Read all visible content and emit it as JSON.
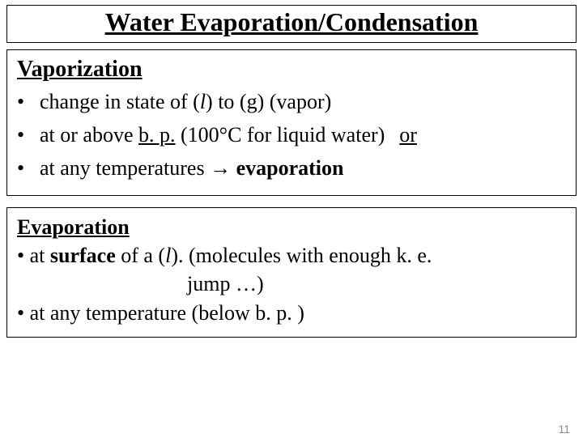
{
  "title": "Water Evaporation/Condensation",
  "colors": {
    "background": "#ffffff",
    "text": "#000000",
    "border": "#000000",
    "pagenum": "#8a8a8a"
  },
  "typography": {
    "title_fontsize": 32,
    "subhead_fontsize": 28,
    "body_fontsize": 26,
    "pagenum_fontsize": 14,
    "family": "Times New Roman"
  },
  "vaporization": {
    "heading": "Vaporization",
    "bullets": [
      {
        "lead": "change in state of (",
        "italic": "l",
        "tail": ") to (g) (vapor)"
      },
      {
        "pre": "at or above ",
        "bp": "b. p.",
        "post": " (100°C for liquid water)",
        "or": "or"
      },
      {
        "pre": "at any temperatures → ",
        "bold": "evaporation"
      }
    ]
  },
  "evaporation": {
    "heading": "Evaporation",
    "line1_pre": "• at ",
    "line1_bold": "surface",
    "line1_mid": " of a (",
    "line1_italic": "l",
    "line1_post": "). (molecules with enough k. e.",
    "line2": "jump …)",
    "line3": "• at any temperature (below b. p. )"
  },
  "page_number": "11"
}
